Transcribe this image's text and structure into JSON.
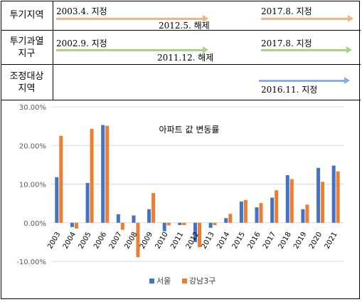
{
  "timeline": {
    "rows": [
      {
        "label": "투기지역",
        "labels": [
          "2003.4. 지정",
          "2012.5. 해제",
          "2017.8. 지정"
        ]
      },
      {
        "label": "투기과열\n지구",
        "labels": [
          "2002.9. 지정",
          "2011.12. 해제",
          "2017.8. 지정"
        ]
      },
      {
        "label": "조정대상\n지역",
        "labels": [
          "2016.11. 지정"
        ]
      }
    ],
    "colors": {
      "speculation": "#f4b183",
      "overheated": "#a9d18e",
      "adjustment": "#8faadc"
    }
  },
  "chart_data": {
    "type": "bar",
    "title": "아파트 값 변동률",
    "categories": [
      "2003",
      "2004",
      "2005",
      "2006",
      "2007",
      "2008",
      "2009",
      "2010",
      "2011",
      "2012",
      "2013",
      "2014",
      "2015",
      "2016",
      "2017",
      "2018",
      "2019",
      "2020",
      "2021"
    ],
    "series": [
      {
        "name": "서울",
        "color": "#4472c4",
        "values": [
          11.8,
          -1.1,
          10.3,
          25.3,
          2.2,
          1.9,
          3.5,
          -2.2,
          -0.6,
          -5.0,
          -1.3,
          1.2,
          5.5,
          4.0,
          6.5,
          12.3,
          3.5,
          14.2,
          14.8
        ]
      },
      {
        "name": "강남3구",
        "color": "#ed7d31",
        "values": [
          22.5,
          -1.5,
          24.3,
          25.1,
          -1.8,
          -8.9,
          7.7,
          -0.7,
          -0.6,
          -6.3,
          -0.6,
          2.3,
          5.9,
          5.1,
          8.4,
          11.3,
          4.7,
          10.6,
          13.3
        ]
      }
    ],
    "ylim": [
      -10,
      30
    ],
    "yticks": [
      -10,
      0,
      10,
      20,
      30
    ],
    "ytick_labels": [
      "-10.00%",
      "0.00%",
      "10.00%",
      "20.00%",
      "30.00%"
    ],
    "grid": true,
    "legend": "bottom-center"
  }
}
